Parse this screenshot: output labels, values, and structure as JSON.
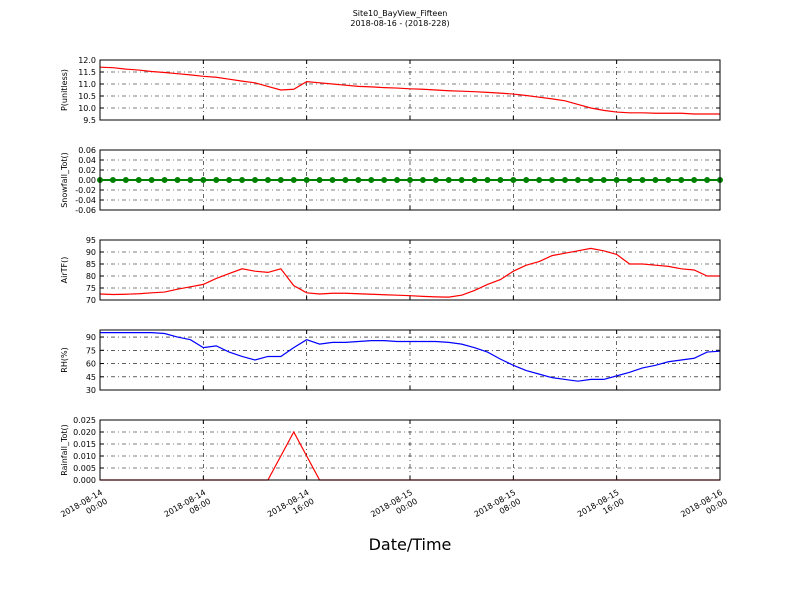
{
  "title": "Site10_BayView_Fifteen",
  "subtitle": "2018-08-16 - (2018-228)",
  "x_axis": {
    "label": "Date/Time",
    "lim": [
      "2018-08-14 00:00",
      "2018-08-16 00:00"
    ],
    "ticks": [
      "2018-08-14 00:00",
      "2018-08-14 08:00",
      "2018-08-14 16:00",
      "2018-08-15 00:00",
      "2018-08-15 08:00",
      "2018-08-15 16:00",
      "2018-08-16 00:00"
    ],
    "values": [
      "2018-08-14 00:00",
      "2018-08-14 01:00",
      "2018-08-14 02:00",
      "2018-08-14 03:00",
      "2018-08-14 04:00",
      "2018-08-14 05:00",
      "2018-08-14 06:00",
      "2018-08-14 07:00",
      "2018-08-14 08:00",
      "2018-08-14 09:00",
      "2018-08-14 10:00",
      "2018-08-14 11:00",
      "2018-08-14 12:00",
      "2018-08-14 13:00",
      "2018-08-14 14:00",
      "2018-08-14 15:00",
      "2018-08-14 16:00",
      "2018-08-14 17:00",
      "2018-08-14 18:00",
      "2018-08-14 19:00",
      "2018-08-14 20:00",
      "2018-08-14 21:00",
      "2018-08-14 22:00",
      "2018-08-14 23:00",
      "2018-08-15 00:00",
      "2018-08-15 01:00",
      "2018-08-15 02:00",
      "2018-08-15 03:00",
      "2018-08-15 04:00",
      "2018-08-15 05:00",
      "2018-08-15 06:00",
      "2018-08-15 07:00",
      "2018-08-15 08:00",
      "2018-08-15 09:00",
      "2018-08-15 10:00",
      "2018-08-15 11:00",
      "2018-08-15 12:00",
      "2018-08-15 13:00",
      "2018-08-15 14:00",
      "2018-08-15 15:00",
      "2018-08-15 16:00",
      "2018-08-15 17:00",
      "2018-08-15 18:00",
      "2018-08-15 19:00",
      "2018-08-15 20:00",
      "2018-08-15 21:00",
      "2018-08-15 22:00",
      "2018-08-15 23:00",
      "2018-08-16 00:00"
    ]
  },
  "chart_data": [
    {
      "type": "line",
      "ylabel": "P(unitless)",
      "ylim": [
        9.5,
        12.0
      ],
      "grid": true,
      "yticks": [
        9.5,
        {
          "value": 10,
          "label": "10.0"
        },
        10.5,
        {
          "value": 11,
          "label": "11.0"
        },
        11.5,
        {
          "value": 12,
          "label": "12.0"
        }
      ],
      "series": [
        {
          "color": "#ff0000",
          "values": [
            11.7,
            11.68,
            11.62,
            11.58,
            11.52,
            11.48,
            11.43,
            11.38,
            11.32,
            11.28,
            11.2,
            11.12,
            11.05,
            10.9,
            10.75,
            10.78,
            11.1,
            11.05,
            11.0,
            10.95,
            10.9,
            10.88,
            10.85,
            10.83,
            10.8,
            10.78,
            10.75,
            10.72,
            10.7,
            10.68,
            10.65,
            10.62,
            10.58,
            10.52,
            10.45,
            10.38,
            10.3,
            10.15,
            10.0,
            9.9,
            9.83,
            9.8,
            9.8,
            9.78,
            9.78,
            9.78,
            9.75,
            9.75,
            9.75
          ]
        }
      ]
    },
    {
      "type": "line",
      "ylabel": "Snowfall_Tot()",
      "ylim": [
        -0.06,
        0.06
      ],
      "grid": true,
      "marker": true,
      "yticks": [
        -0.06,
        -0.04,
        -0.02,
        {
          "value": 0,
          "label": "0.00"
        },
        0.02,
        0.04,
        0.06
      ],
      "series": [
        {
          "color": "#008000",
          "values": [
            0,
            0,
            0,
            0,
            0,
            0,
            0,
            0,
            0,
            0,
            0,
            0,
            0,
            0,
            0,
            0,
            0,
            0,
            0,
            0,
            0,
            0,
            0,
            0,
            0,
            0,
            0,
            0,
            0,
            0,
            0,
            0,
            0,
            0,
            0,
            0,
            0,
            0,
            0,
            0,
            0,
            0,
            0,
            0,
            0,
            0,
            0,
            0,
            0
          ]
        }
      ]
    },
    {
      "type": "line",
      "ylabel": "AirTF()",
      "ylim": [
        70,
        95
      ],
      "grid": true,
      "yticks": [
        70,
        75,
        80,
        85,
        90,
        95
      ],
      "series": [
        {
          "color": "#ff0000",
          "values": [
            72.5,
            72.3,
            72.4,
            72.6,
            73,
            73.3,
            74.5,
            75.5,
            76.5,
            79,
            81,
            83,
            82,
            81.5,
            83,
            76,
            73,
            72.5,
            72.8,
            72.8,
            72.6,
            72.4,
            72.2,
            72,
            71.8,
            71.5,
            71.3,
            71.2,
            72,
            74,
            76.5,
            78.5,
            82,
            84.5,
            86,
            88.5,
            89.5,
            90.5,
            91.5,
            90.5,
            89,
            85,
            85,
            84.5,
            84,
            83,
            82.5,
            80,
            80
          ]
        }
      ]
    },
    {
      "type": "line",
      "ylabel": "RH(%)",
      "ylim": [
        30,
        98
      ],
      "grid": true,
      "yticks": [
        30,
        45,
        60,
        75,
        90
      ],
      "series": [
        {
          "color": "#0000ff",
          "values": [
            95,
            95,
            95,
            95,
            95,
            94,
            90,
            87,
            78,
            80,
            73,
            68,
            64,
            68,
            68,
            78,
            87,
            82,
            84,
            84,
            85,
            86,
            86,
            85,
            85,
            85,
            85,
            84,
            82,
            78,
            73,
            65,
            58,
            52,
            48,
            44,
            42,
            40,
            42,
            42,
            46,
            50,
            55,
            58,
            62,
            64,
            66,
            73,
            74
          ]
        }
      ]
    },
    {
      "type": "line",
      "ylabel": "Rainfall_Tot()",
      "ylim": [
        0,
        0.025
      ],
      "grid": true,
      "yticks": [
        {
          "value": 0,
          "label": "0.000"
        },
        0.005,
        {
          "value": 0.01,
          "label": "0.010"
        },
        0.015,
        {
          "value": 0.02,
          "label": "0.020"
        },
        0.025
      ],
      "series": [
        {
          "color": "#ff0000",
          "values": [
            0,
            0,
            0,
            0,
            0,
            0,
            0,
            0,
            0,
            0,
            0,
            0,
            0,
            0,
            0.01,
            0.02,
            0.01,
            0,
            0,
            0,
            0,
            0,
            0,
            0,
            0,
            0,
            0,
            0,
            0,
            0,
            0,
            0,
            0,
            0,
            0,
            0,
            0,
            0,
            0,
            0,
            0,
            0,
            0,
            0,
            0,
            0,
            0,
            0,
            0
          ]
        }
      ]
    }
  ]
}
